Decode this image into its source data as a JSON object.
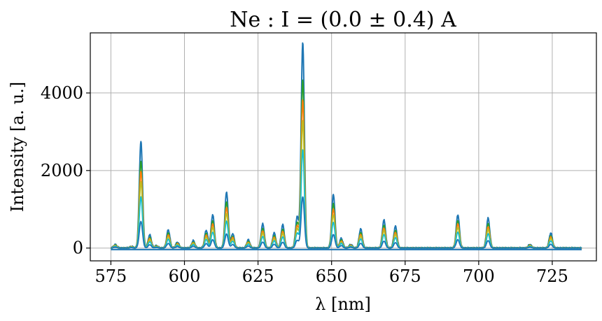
{
  "chart_data": {
    "type": "line",
    "title": "Ne : I = (0.0 ± 0.4) A",
    "xlabel": "λ [nm]",
    "ylabel": "Intensity [a. u.]",
    "xlim": [
      568,
      740
    ],
    "ylim": [
      -330,
      5550
    ],
    "xticks": [
      575,
      600,
      625,
      650,
      675,
      700,
      725
    ],
    "yticks": [
      0,
      2000,
      4000
    ],
    "grid": true,
    "x_range": [
      575,
      735
    ],
    "peak_width_nm": 0.55,
    "peaks": [
      {
        "x": 576.5,
        "h": 90
      },
      {
        "x": 582.0,
        "h": 40
      },
      {
        "x": 585.2,
        "h": 2750
      },
      {
        "x": 588.2,
        "h": 340
      },
      {
        "x": 590.5,
        "h": 60
      },
      {
        "x": 594.5,
        "h": 470
      },
      {
        "x": 597.6,
        "h": 150
      },
      {
        "x": 603.0,
        "h": 190
      },
      {
        "x": 607.4,
        "h": 460
      },
      {
        "x": 609.6,
        "h": 860
      },
      {
        "x": 614.3,
        "h": 1450
      },
      {
        "x": 616.4,
        "h": 370
      },
      {
        "x": 621.7,
        "h": 210
      },
      {
        "x": 626.6,
        "h": 620
      },
      {
        "x": 630.5,
        "h": 390
      },
      {
        "x": 633.4,
        "h": 600
      },
      {
        "x": 638.3,
        "h": 800
      },
      {
        "x": 640.2,
        "h": 5300
      },
      {
        "x": 650.6,
        "h": 1390
      },
      {
        "x": 653.3,
        "h": 250
      },
      {
        "x": 656.5,
        "h": 90
      },
      {
        "x": 659.9,
        "h": 490
      },
      {
        "x": 667.8,
        "h": 720
      },
      {
        "x": 671.7,
        "h": 560
      },
      {
        "x": 692.9,
        "h": 860
      },
      {
        "x": 703.2,
        "h": 770
      },
      {
        "x": 717.4,
        "h": 90
      },
      {
        "x": 724.5,
        "h": 390
      }
    ],
    "series": [
      {
        "scale": 1.0,
        "color": "#1f77b4"
      },
      {
        "scale": 0.82,
        "color": "#2ca02c"
      },
      {
        "scale": 0.72,
        "color": "#ff7f0e"
      },
      {
        "scale": 0.62,
        "color": "#bcbd22"
      },
      {
        "scale": 0.48,
        "color": "#17becf"
      },
      {
        "scale": 0.25,
        "color": "#1f77b4"
      }
    ]
  }
}
